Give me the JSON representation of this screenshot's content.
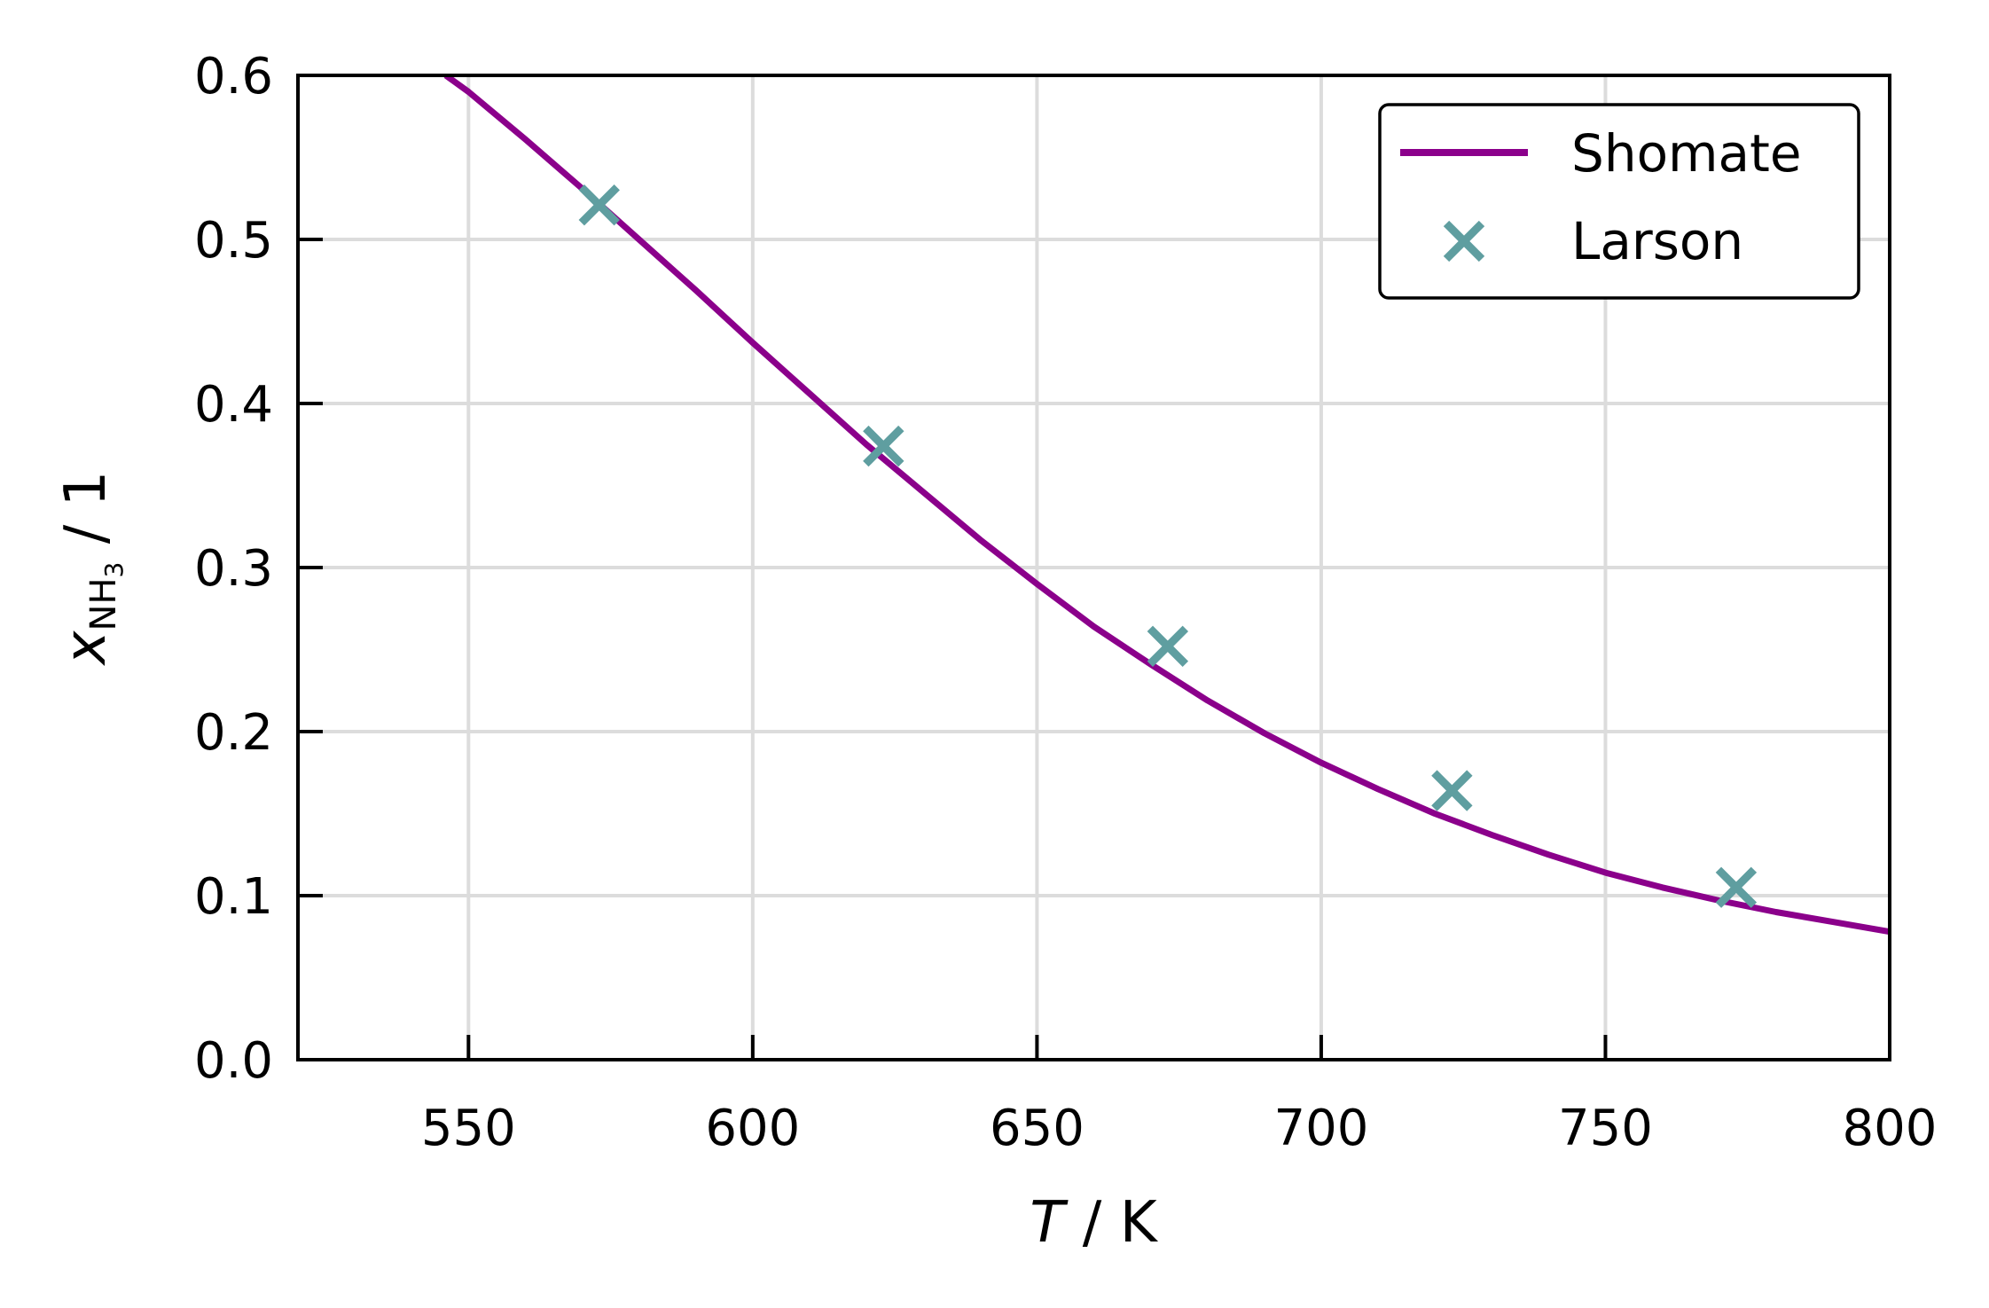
{
  "chart_data": {
    "type": "line",
    "xlabel": {
      "italic": "T",
      "rest": " / K"
    },
    "ylabel": {
      "base": "x",
      "subscript": "NH",
      "subsub": "3",
      "rest": " / 1"
    },
    "xlim": [
      520,
      800
    ],
    "ylim": [
      0.0,
      0.6
    ],
    "x_ticks": [
      550,
      600,
      650,
      700,
      750,
      800
    ],
    "x_tick_labels": [
      "550",
      "600",
      "650",
      "700",
      "750",
      "800"
    ],
    "y_ticks": [
      0.0,
      0.1,
      0.2,
      0.3,
      0.4,
      0.5,
      0.6
    ],
    "y_tick_labels": [
      "0.0",
      "0.1",
      "0.2",
      "0.3",
      "0.4",
      "0.5",
      "0.6"
    ],
    "grid": true,
    "legend_position": "top-right",
    "series": [
      {
        "name": "Shomate",
        "kind": "line",
        "color": "#8B008B",
        "x": [
          546,
          550,
          560,
          570,
          580,
          590,
          600,
          610,
          620,
          630,
          640,
          650,
          660,
          670,
          680,
          690,
          700,
          710,
          720,
          730,
          740,
          750,
          760,
          770,
          780,
          790,
          800
        ],
        "y": [
          0.6,
          0.59,
          0.561,
          0.531,
          0.5,
          0.469,
          0.437,
          0.406,
          0.375,
          0.346,
          0.317,
          0.29,
          0.264,
          0.241,
          0.219,
          0.199,
          0.181,
          0.165,
          0.15,
          0.137,
          0.125,
          0.114,
          0.105,
          0.097,
          0.09,
          0.084,
          0.078
        ]
      },
      {
        "name": "Larson",
        "kind": "scatter",
        "marker": "x",
        "color": "#5F9EA0",
        "x": [
          573,
          623,
          673,
          723,
          773
        ],
        "y": [
          0.521,
          0.374,
          0.252,
          0.164,
          0.105
        ]
      }
    ]
  }
}
